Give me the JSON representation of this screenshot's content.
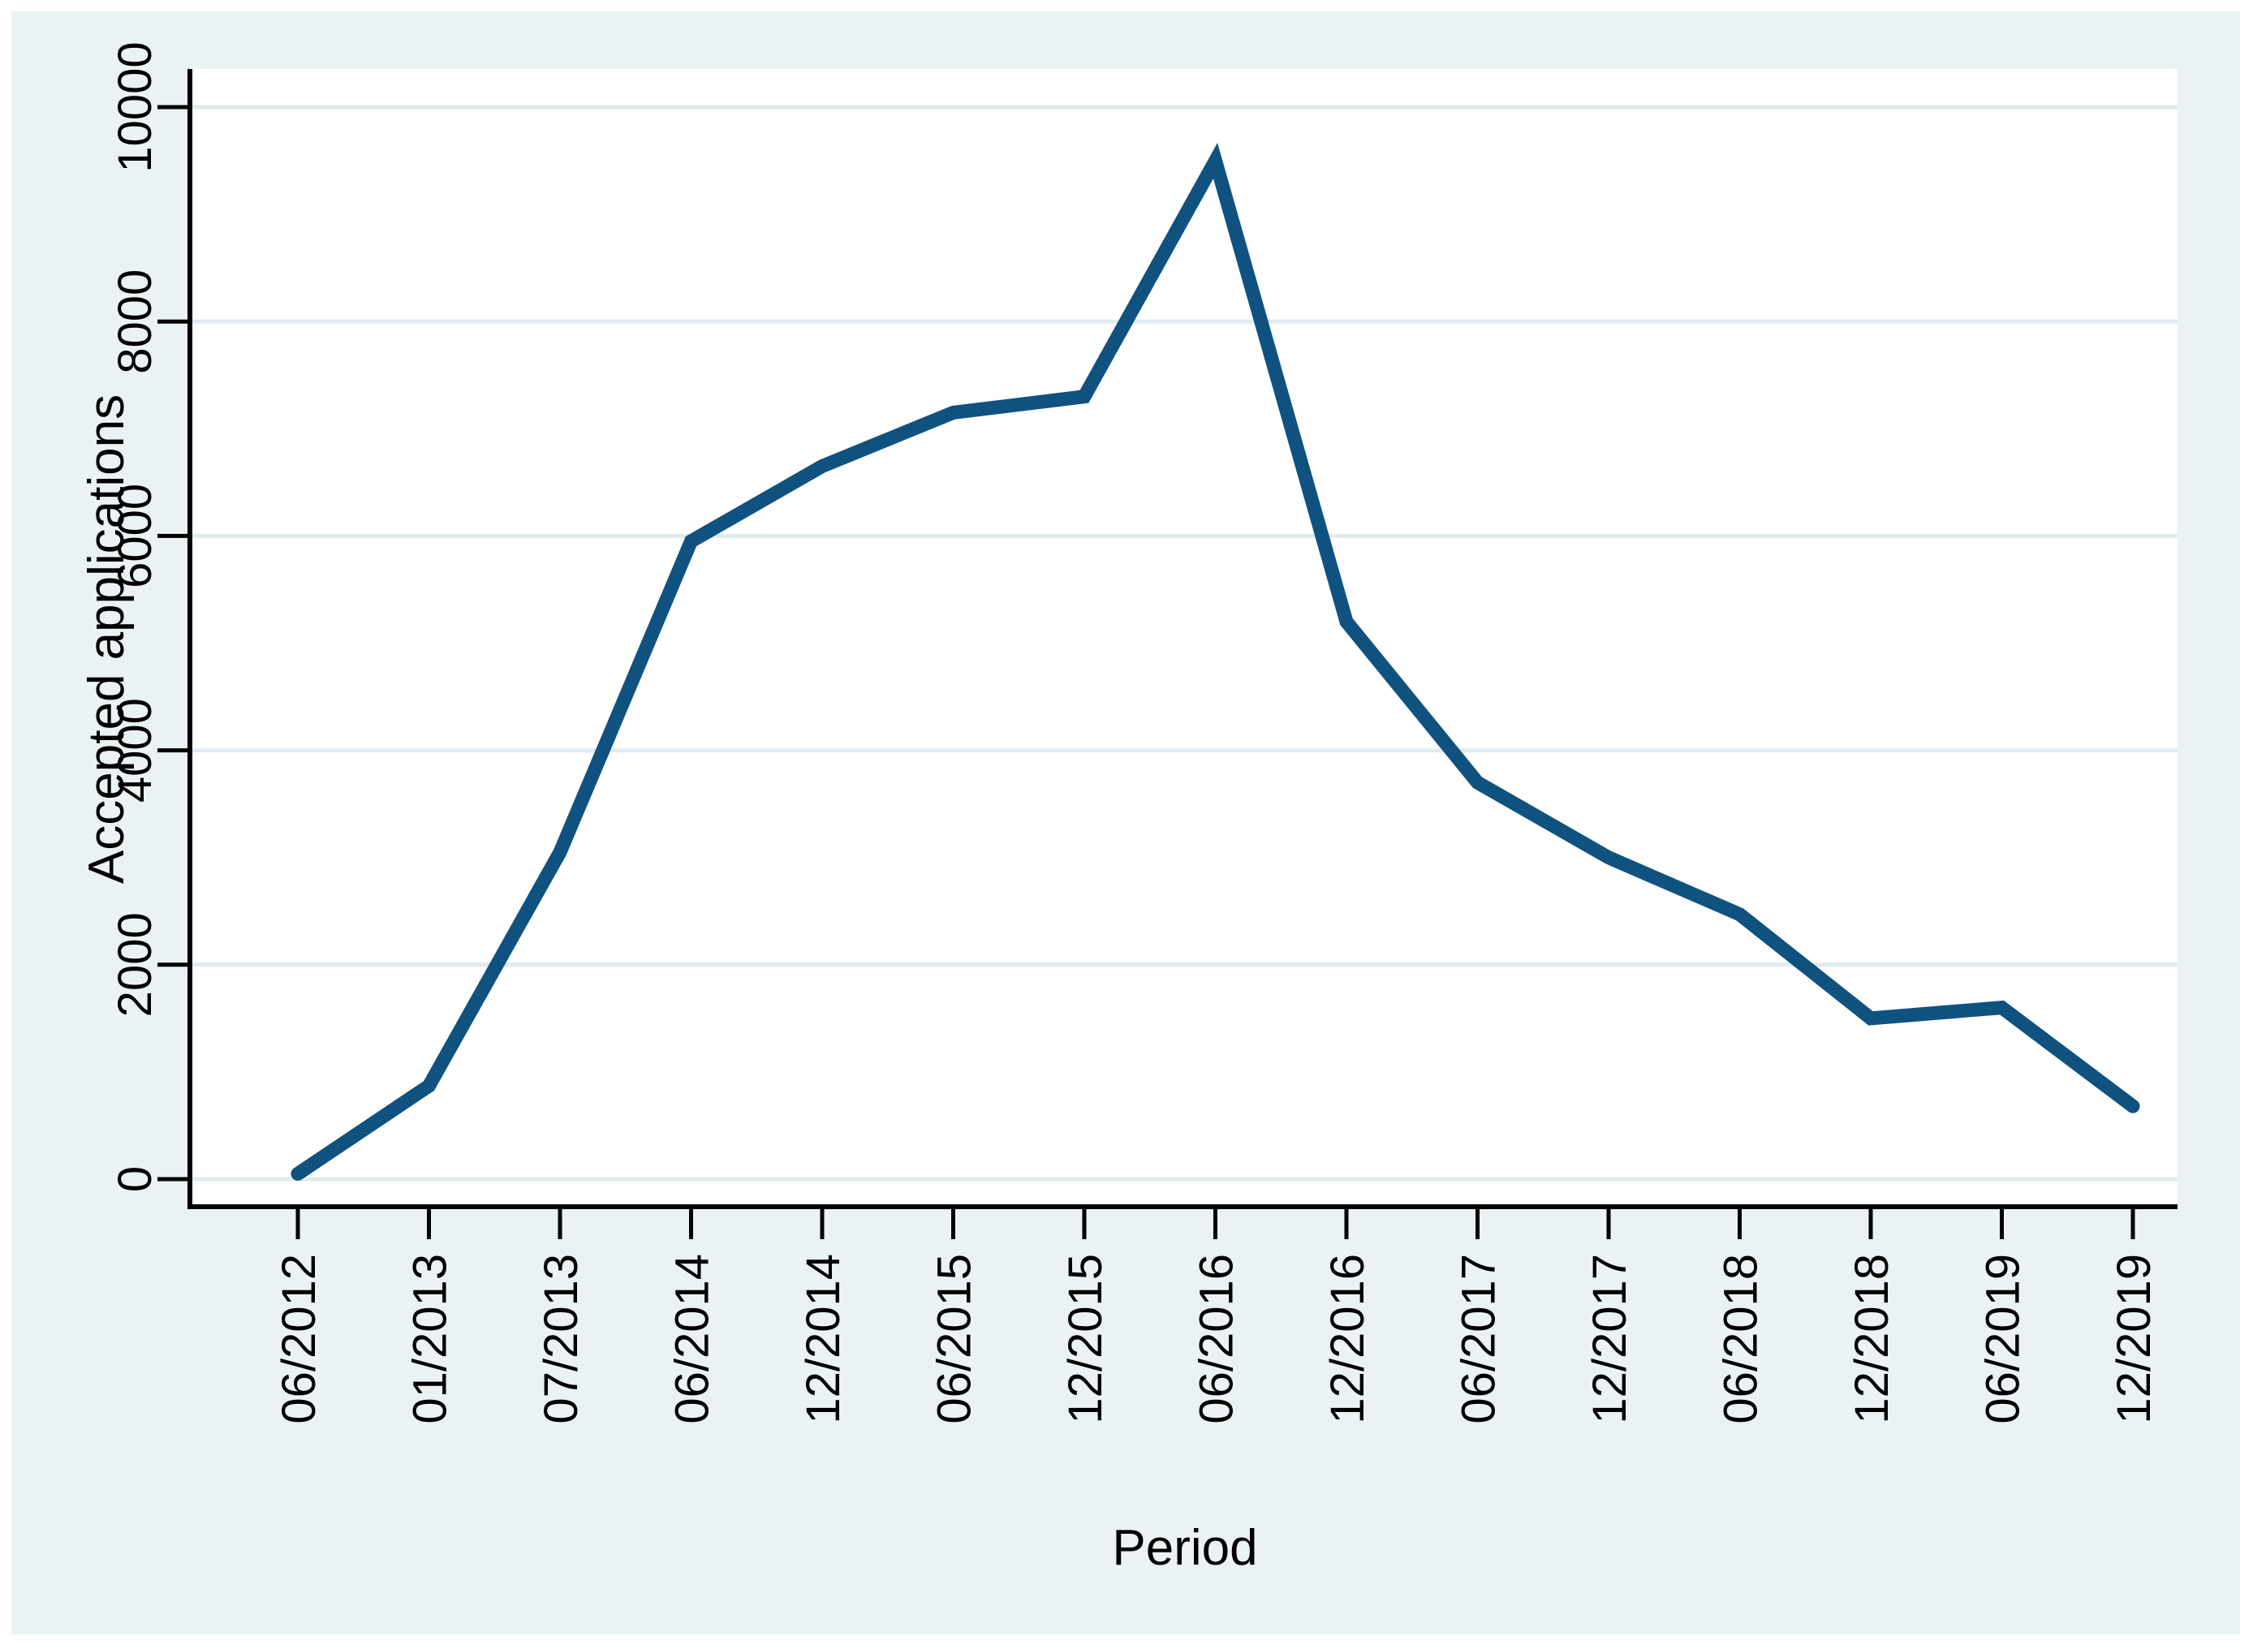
{
  "chart_data": {
    "type": "line",
    "title": "",
    "xlabel": "Period",
    "ylabel": "Accepted applications",
    "categories": [
      "06/2012",
      "01/2013",
      "07/2013",
      "06/2014",
      "12/2014",
      "06/2015",
      "12/2015",
      "06/2016",
      "12/2016",
      "06/2017",
      "12/2017",
      "06/2018",
      "12/2018",
      "06/2019",
      "12/2019"
    ],
    "values": [
      50,
      870,
      3050,
      5950,
      6650,
      7150,
      7300,
      9500,
      5200,
      3700,
      3000,
      2470,
      1500,
      1600,
      680
    ],
    "ylim": [
      0,
      10000
    ],
    "yticks": [
      0,
      2000,
      4000,
      6000,
      8000,
      10000
    ],
    "ytick_labels": [
      "0",
      "2000",
      "4000",
      "6000",
      "8000",
      "10000"
    ],
    "grid": true,
    "tick_label_rotation": -90,
    "legend": "none",
    "colors": {
      "line": "#0F527F",
      "canvas_bg": "#EAF2F3",
      "plot_bg": "#FFFFFF",
      "gridline": "#E0EBED",
      "axis": "#000000",
      "text": "#000000"
    }
  }
}
